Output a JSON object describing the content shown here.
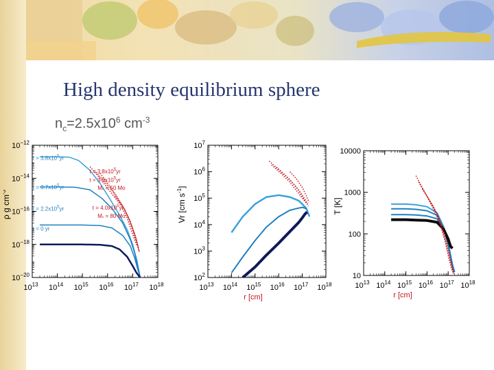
{
  "slide": {
    "title": "High density equilibrium sphere",
    "subtitle": {
      "n_base": "n",
      "n_sub": "c",
      "eq": "=2.5x10",
      "exp1": "6",
      "unit": " cm",
      "exp2": "-3"
    }
  },
  "colors": {
    "title": "#26356e",
    "model_dark": "#0d1a5a",
    "model_mid": "#1e7fc0",
    "model_light": "#3aa0dc",
    "observed": "#c0161b"
  },
  "chart_data": [
    {
      "type": "line",
      "panel": "density",
      "xscale": "log",
      "yscale": "log",
      "xlim": [
        10000000000000.0,
        1e+18
      ],
      "ylim": [
        1e-20,
        1e-12
      ],
      "xticks": [
        {
          "base": "10",
          "exp": "13",
          "value": 10000000000000.0
        },
        {
          "base": "10",
          "exp": "14",
          "value": 100000000000000.0
        },
        {
          "base": "10",
          "exp": "15",
          "value": 1000000000000000.0
        },
        {
          "base": "10",
          "exp": "16",
          "value": 1e+16
        },
        {
          "base": "10",
          "exp": "17",
          "value": 1e+17
        },
        {
          "base": "10",
          "exp": "18",
          "value": 1e+18
        }
      ],
      "yticks": [
        {
          "base": "10",
          "exp": "−12",
          "value": 1e-12
        },
        {
          "base": "10",
          "exp": "−14",
          "value": 1e-14
        },
        {
          "base": "10",
          "exp": "−16",
          "value": 1e-16
        },
        {
          "base": "10",
          "exp": "−18",
          "value": 1e-18
        },
        {
          "base": "10",
          "exp": "−20",
          "value": 1e-20
        }
      ],
      "ylabel": {
        "pre": "ρ",
        "unit": "g cm",
        "exp": "-3"
      },
      "series": [
        {
          "color": "#3aa0dc",
          "width": 1.5,
          "x": [
            20000000000000.0,
            50000000000000.0,
            100000000000000.0,
            300000000000000.0,
            700000000000000.0,
            2000000000000000.0,
            5000000000000000.0,
            1.2e+16,
            3e+16,
            6e+16,
            1e+17,
            1.5e+17,
            2e+17
          ],
          "y": [
            2e-13,
            2e-13,
            2e-13,
            1.9e-13,
            1.2e-13,
            3e-14,
            5e-15,
            6e-16,
            6e-17,
            8e-18,
            1e-18,
            1e-19,
            1e-20
          ]
        },
        {
          "color": "#1e7fc0",
          "width": 1.5,
          "x": [
            20000000000000.0,
            100000000000000.0,
            500000000000000.0,
            2000000000000000.0,
            6000000000000000.0,
            1.5e+16,
            4e+16,
            8e+16,
            1.2e+17,
            1.6e+17,
            2e+17
          ],
          "y": [
            3e-15,
            3e-15,
            2.9e-15,
            2e-15,
            6e-16,
            1.5e-16,
            2e-17,
            2e-18,
            3e-19,
            4e-20,
            1e-20
          ]
        },
        {
          "color": "#1e7fc0",
          "width": 1.5,
          "x": [
            20000000000000.0,
            100000000000000.0,
            1000000000000000.0,
            5000000000000000.0,
            1.5e+16,
            4e+16,
            8e+16,
            1.2e+17,
            1.6e+17,
            2e+17
          ],
          "y": [
            1.5e-17,
            1.5e-17,
            1.5e-17,
            1.4e-17,
            1e-17,
            3.5e-18,
            8e-19,
            1.5e-19,
            3e-20,
            1e-20
          ]
        },
        {
          "color": "#0d1a5a",
          "width": 2.5,
          "x": [
            20000000000000.0,
            100000000000000.0,
            1000000000000000.0,
            5000000000000000.0,
            1.5e+16,
            3e+16,
            6e+16,
            1e+17,
            1.4e+17,
            1.8e+17,
            2e+17
          ],
          "y": [
            1e-18,
            1e-18,
            1e-18,
            9.5e-19,
            8e-19,
            5e-19,
            1.8e-19,
            5e-20,
            2e-20,
            1.2e-20,
            1e-20
          ]
        }
      ],
      "observed": [
        {
          "x": [
            2000000000000000.0,
            5000000000000000.0,
            1e+16,
            3e+16,
            6e+16,
            1e+17,
            1.5e+17
          ],
          "y": [
            5e-14,
            1e-14,
            2.5e-15,
            3e-16,
            4e-17,
            4e-18,
            8e-19
          ]
        },
        {
          "x": [
            3000000000000000.0,
            7000000000000000.0,
            1.5e+16,
            4e+16,
            8e+16,
            1.3e+17,
            1.7e+17
          ],
          "y": [
            3e-14,
            7e-15,
            1.8e-15,
            2e-16,
            2.5e-17,
            3e-18,
            6e-19
          ]
        },
        {
          "x": [
            5000000000000000.0,
            1e+16,
            2e+16,
            5e+16,
            9e+16,
            1.4e+17,
            1.8e+17
          ],
          "y": [
            2e-14,
            5e-15,
            1.2e-15,
            1.2e-16,
            1.4e-17,
            2e-18,
            4e-19
          ]
        },
        {
          "x": [
            2e+16,
            4e+16,
            7e+16,
            1e+17,
            1.5e+17,
            1.9e+17
          ],
          "y": [
            8e-16,
            2e-16,
            4e-17,
            8e-18,
            1e-18,
            3e-19
          ]
        }
      ],
      "annotations": [
        {
          "pre": "t = 3.8x10",
          "exp": "5",
          "post": "yr",
          "color": "#1e7fc0",
          "x": 10500000000000.0,
          "y": 1.3e-13
        },
        {
          "pre": "t = 3.7x10",
          "exp": "5",
          "post": "yr",
          "color": "#1e7fc0",
          "x": 10500000000000.0,
          "y": 2.2e-15
        },
        {
          "pre": "t = 2.2x10",
          "exp": "5",
          "post": "yr",
          "color": "#1e7fc0",
          "x": 10500000000000.0,
          "y": 1.1e-16
        },
        {
          "pre": "t = 0 yr",
          "exp": "",
          "post": "",
          "color": "#1e7fc0",
          "x": 10500000000000.0,
          "y": 7e-18
        },
        {
          "pre": "t = 3.8x10",
          "exp": "5",
          "post": "yr",
          "color": "#c0161b",
          "x": 1900000000000000.0,
          "y": 2e-14
        },
        {
          "pre": "t = 3.9x10",
          "exp": "5",
          "post": "yr",
          "color": "#c0161b",
          "x": 1900000000000000.0,
          "y": 6e-15
        },
        {
          "pre": "M",
          "sub": "*",
          "post": " = 50 Mo",
          "color": "#c0161b",
          "x": 4000000000000000.0,
          "y": 2e-15
        },
        {
          "pre": "t = 4.0x10",
          "exp": "5",
          "post": "yr",
          "color": "#c0161b",
          "x": 2500000000000000.0,
          "y": 1.3e-16
        },
        {
          "pre": "M",
          "sub": "*",
          "post": " = 80 Mo",
          "color": "#c0161b",
          "x": 4000000000000000.0,
          "y": 4e-17
        }
      ]
    },
    {
      "type": "line",
      "panel": "velocity",
      "xscale": "log",
      "yscale": "log",
      "xlim": [
        10000000000000.0,
        1e+18
      ],
      "ylim": [
        100,
        10000000.0
      ],
      "xticks": [
        {
          "base": "10",
          "exp": "13",
          "value": 10000000000000.0
        },
        {
          "base": "10",
          "exp": "14",
          "value": 100000000000000.0
        },
        {
          "base": "10",
          "exp": "15",
          "value": 1000000000000000.0
        },
        {
          "base": "10",
          "exp": "16",
          "value": 1e+16
        },
        {
          "base": "10",
          "exp": "17",
          "value": 1e+17
        },
        {
          "base": "10",
          "exp": "18",
          "value": 1e+18
        }
      ],
      "yticks": [
        {
          "base": "10",
          "exp": "2",
          "value": 100
        },
        {
          "base": "10",
          "exp": "3",
          "value": 1000
        },
        {
          "base": "10",
          "exp": "4",
          "value": 10000
        },
        {
          "base": "10",
          "exp": "5",
          "value": 100000
        },
        {
          "base": "10",
          "exp": "6",
          "value": 1000000
        },
        {
          "base": "10",
          "exp": "7",
          "value": 10000000
        }
      ],
      "xlabel": "r  [cm]",
      "ylabel": {
        "pre": "Vr  [cm s",
        "exp": "-1",
        "post": "]"
      },
      "series": [
        {
          "color": "#3aa0dc",
          "width": 2.5,
          "x": [
            100000000000000.0,
            300000000000000.0,
            1000000000000000.0,
            3000000000000000.0,
            1e+16,
            3e+16,
            7e+16,
            1e+17,
            1.5e+17,
            2e+17
          ],
          "y": [
            5000,
            20000,
            60000,
            110000,
            130000,
            110000,
            80000,
            60000,
            40000,
            20000
          ]
        },
        {
          "color": "#1e7fc0",
          "width": 2,
          "x": [
            100000000000000.0,
            300000000000000.0,
            1000000000000000.0,
            3000000000000000.0,
            1e+16,
            3e+16,
            7e+16,
            1e+17,
            1.5e+17
          ],
          "y": [
            150,
            600,
            2500,
            8000,
            20000,
            35000,
            42000,
            45000,
            40000
          ]
        },
        {
          "color": "#0d1a5a",
          "width": 4,
          "x": [
            300000000000000.0,
            1000000000000000.0,
            3000000000000000.0,
            1e+16,
            3e+16,
            7e+16,
            1e+17,
            1.3e+17,
            1.6e+17
          ],
          "y": [
            100,
            250,
            700,
            2000,
            5500,
            12000,
            18000,
            25000,
            30000
          ]
        }
      ],
      "observed": [
        {
          "x": [
            4000000000000000.0,
            1e+16,
            3e+16,
            7e+16,
            1.2e+17,
            1.7e+17
          ],
          "y": [
            2500000,
            1200000,
            500000,
            200000,
            90000,
            60000
          ]
        },
        {
          "x": [
            5000000000000000.0,
            1.2e+16,
            3e+16,
            6e+16,
            1e+17,
            1.6e+17
          ],
          "y": [
            1800000,
            900000,
            400000,
            180000,
            100000,
            60000
          ]
        },
        {
          "x": [
            8000000000000000.0,
            2e+16,
            5e+16,
            9e+16,
            1.4e+17,
            1.8e+17
          ],
          "y": [
            1500000,
            700000,
            300000,
            150000,
            80000,
            50000
          ]
        },
        {
          "x": [
            3e+16,
            6e+16,
            1e+17,
            1.5e+17,
            1.9e+17
          ],
          "y": [
            1000000,
            500000,
            250000,
            120000,
            70000
          ]
        }
      ]
    },
    {
      "type": "line",
      "panel": "temperature",
      "xscale": "log",
      "yscale": "log",
      "xlim": [
        10000000000000.0,
        1e+18
      ],
      "ylim": [
        10,
        10000
      ],
      "xticks": [
        {
          "base": "10",
          "exp": "13",
          "value": 10000000000000.0
        },
        {
          "base": "10",
          "exp": "14",
          "value": 100000000000000.0
        },
        {
          "base": "10",
          "exp": "15",
          "value": 1000000000000000.0
        },
        {
          "base": "10",
          "exp": "16",
          "value": 1e+16
        },
        {
          "base": "10",
          "exp": "17",
          "value": 1e+17
        },
        {
          "base": "10",
          "exp": "18",
          "value": 1e+18
        }
      ],
      "yticks": [
        {
          "label": "10000",
          "value": 10000
        },
        {
          "label": "1000",
          "value": 1000
        },
        {
          "label": "100",
          "value": 100
        },
        {
          "label": "10",
          "value": 10
        }
      ],
      "xlabel": "r  [cm]",
      "ylabel": {
        "pre": "T  [K]"
      },
      "series": [
        {
          "color": "#3aa0dc",
          "width": 2,
          "x": [
            200000000000000.0,
            1000000000000000.0,
            3000000000000000.0,
            1e+16,
            3e+16,
            6e+16,
            1e+17,
            1.3e+17,
            1.6e+17,
            2e+17
          ],
          "y": [
            520,
            520,
            500,
            450,
            320,
            150,
            60,
            30,
            18,
            12
          ]
        },
        {
          "color": "#1e7fc0",
          "width": 2,
          "x": [
            200000000000000.0,
            1000000000000000.0,
            3000000000000000.0,
            1e+16,
            3e+16,
            6e+16,
            1e+17,
            1.3e+17,
            1.6e+17,
            2e+17
          ],
          "y": [
            400,
            400,
            390,
            360,
            280,
            140,
            60,
            30,
            18,
            12
          ]
        },
        {
          "color": "#1e7fc0",
          "width": 2,
          "x": [
            200000000000000.0,
            1000000000000000.0,
            3000000000000000.0,
            1e+16,
            3e+16,
            6e+16,
            1e+17,
            1.3e+17,
            1.6e+17,
            2e+17
          ],
          "y": [
            290,
            290,
            285,
            270,
            230,
            130,
            55,
            28,
            16,
            12
          ]
        },
        {
          "color": "#0a0a0a",
          "width": 4,
          "x": [
            200000000000000.0,
            1000000000000000.0,
            3000000000000000.0,
            1e+16,
            3e+16,
            6e+16,
            1e+17,
            1.3e+17,
            1.6e+17
          ],
          "y": [
            220,
            220,
            215,
            210,
            190,
            130,
            75,
            50,
            45
          ]
        }
      ],
      "observed": [
        {
          "x": [
            3000000000000000.0,
            5000000000000000.0,
            1e+16,
            2e+16,
            4e+16,
            7e+16,
            1e+17,
            1.4e+17,
            1.8e+17
          ],
          "y": [
            2500,
            1500,
            800,
            400,
            180,
            70,
            30,
            15,
            11
          ]
        },
        {
          "x": [
            4000000000000000.0,
            7000000000000000.0,
            1.4e+16,
            3e+16,
            5e+16,
            8e+16,
            1.2e+17,
            1.6e+17,
            1.9e+17
          ],
          "y": [
            1800,
            1100,
            600,
            300,
            140,
            60,
            25,
            14,
            10
          ]
        },
        {
          "x": [
            6000000000000000.0,
            1e+16,
            2e+16,
            4e+16,
            7e+16,
            1e+17,
            1.4e+17,
            1.8e+17
          ],
          "y": [
            1200,
            800,
            450,
            220,
            100,
            45,
            20,
            12
          ]
        }
      ]
    }
  ]
}
